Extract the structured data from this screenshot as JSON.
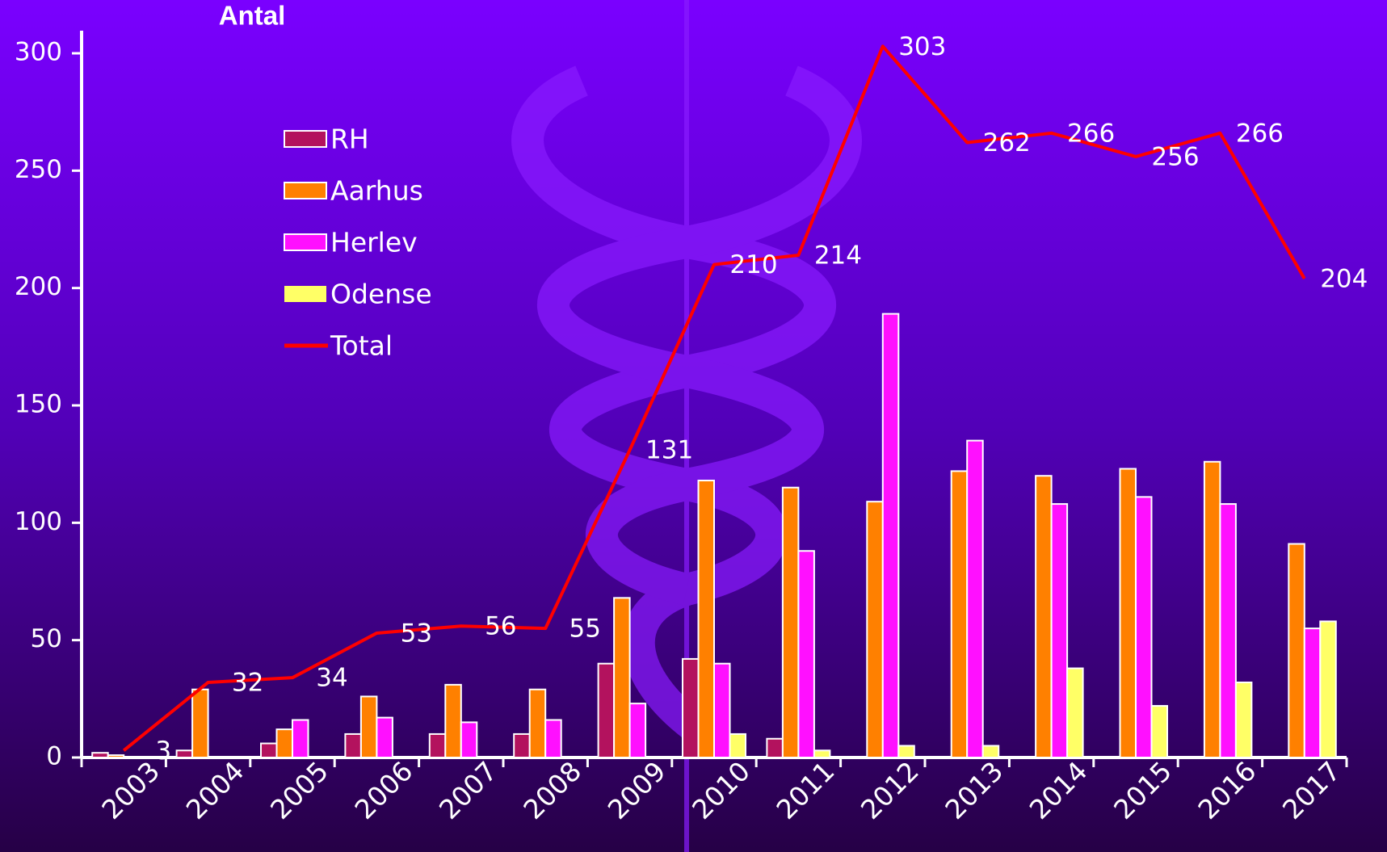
{
  "chart_data": {
    "type": "bar",
    "y_label": "Antal",
    "categories": [
      "2003",
      "2004",
      "2005",
      "2006",
      "2007",
      "2008",
      "2009",
      "2010",
      "2011",
      "2012",
      "2013",
      "2014",
      "2015",
      "2016",
      "2017"
    ],
    "series": [
      {
        "name": "RH",
        "color": "#b3125e",
        "values": [
          2,
          3,
          6,
          10,
          10,
          10,
          40,
          42,
          8,
          0,
          0,
          0,
          0,
          0,
          0
        ]
      },
      {
        "name": "Aarhus",
        "color": "#ff8000",
        "values": [
          1,
          29,
          12,
          26,
          31,
          29,
          68,
          118,
          115,
          109,
          122,
          120,
          123,
          126,
          91
        ]
      },
      {
        "name": "Herlev",
        "color": "#ff10ff",
        "values": [
          0,
          0,
          16,
          17,
          15,
          16,
          23,
          40,
          88,
          189,
          135,
          108,
          111,
          108,
          55
        ]
      },
      {
        "name": "Odense",
        "color": "#ffff66",
        "values": [
          0,
          0,
          0,
          0,
          0,
          0,
          0,
          10,
          3,
          5,
          5,
          38,
          22,
          32,
          58
        ]
      },
      {
        "name": "Total",
        "type": "line",
        "color": "#ff0000",
        "values": [
          3,
          32,
          34,
          53,
          56,
          55,
          131,
          210,
          214,
          303,
          262,
          266,
          256,
          266,
          204
        ]
      }
    ],
    "ylim": [
      0,
      300
    ],
    "yticks": [
      0,
      50,
      100,
      150,
      200,
      250,
      300
    ],
    "grid": false,
    "legend": "upper left"
  }
}
